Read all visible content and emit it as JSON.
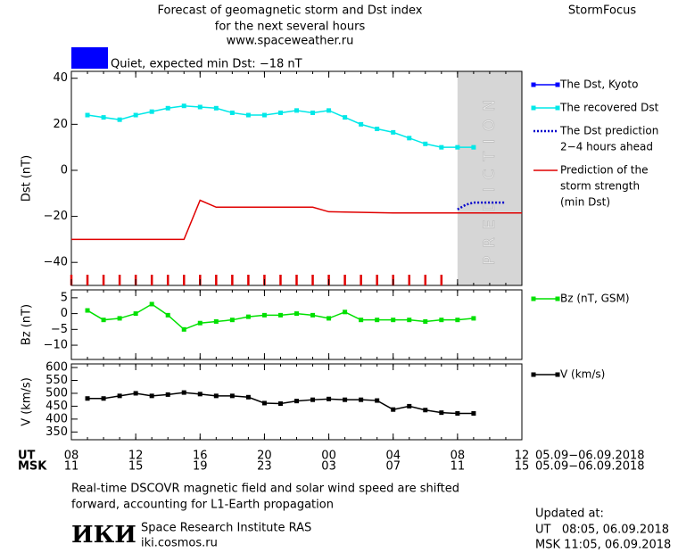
{
  "header": {
    "title_lines": [
      "Forecast of geomagnetic storm and Dst index",
      "for the next several hours",
      "www.spaceweather.ru"
    ],
    "brand": "StormFocus",
    "status": {
      "label": "Quiet, expected min Dst: −18 nT",
      "color": "#0000ff"
    }
  },
  "x_axis": {
    "xlim": [
      0,
      28
    ],
    "ut_label": "UT",
    "msk_label": "MSK",
    "ut_ticks": [
      {
        "value": 0,
        "label": "08"
      },
      {
        "value": 4,
        "label": "12"
      },
      {
        "value": 8,
        "label": "16"
      },
      {
        "value": 12,
        "label": "20"
      },
      {
        "value": 16,
        "label": "00"
      },
      {
        "value": 20,
        "label": "04"
      },
      {
        "value": 24,
        "label": "08"
      },
      {
        "value": 28,
        "label": "12"
      }
    ],
    "msk_ticks": [
      {
        "value": 0,
        "label": "11"
      },
      {
        "value": 4,
        "label": "15"
      },
      {
        "value": 8,
        "label": "19"
      },
      {
        "value": 12,
        "label": "23"
      },
      {
        "value": 16,
        "label": "03"
      },
      {
        "value": 20,
        "label": "07"
      },
      {
        "value": 24,
        "label": "11"
      },
      {
        "value": 28,
        "label": "15"
      }
    ],
    "ut_dates": "05.09−06.09.2018",
    "msk_dates": "05.09−06.09.2018"
  },
  "chart_data": [
    {
      "type": "line",
      "y_label": "Dst (nT)",
      "ylim": [
        -50,
        43
      ],
      "yticks": [
        {
          "value": 40,
          "label": "40"
        },
        {
          "value": 20,
          "label": "20"
        },
        {
          "value": 0,
          "label": "0"
        },
        {
          "value": -20,
          "label": "−20"
        },
        {
          "value": -40,
          "label": "−40"
        }
      ],
      "prediction_start": 24,
      "prediction_label": "PREDICTION",
      "series": [
        {
          "name": [
            "The Dst, Kyoto"
          ],
          "color": "#0000ff",
          "marker": "square",
          "x": [],
          "values": []
        },
        {
          "name": [
            "The recovered Dst"
          ],
          "color": "#00e8e8",
          "marker": "square",
          "x": [
            1,
            2,
            3,
            4,
            5,
            6,
            7,
            8,
            9,
            10,
            11,
            12,
            13,
            14,
            15,
            16,
            17,
            18,
            19,
            20,
            21,
            22,
            23,
            24,
            25
          ],
          "values": [
            24,
            23,
            22,
            24,
            25.5,
            27,
            28,
            27.5,
            27,
            25,
            24,
            24,
            25,
            26,
            25,
            26,
            23,
            20,
            18,
            16.5,
            14,
            11.5,
            10,
            10,
            10
          ]
        },
        {
          "name": [
            "The Dst prediction",
            "2−4 hours ahead"
          ],
          "color": "#0000cc",
          "style": "dotted",
          "x": [
            24,
            24.5,
            25,
            26,
            27
          ],
          "values": [
            -17,
            -15,
            -14,
            -14,
            -14
          ]
        },
        {
          "name": [
            "Prediction of the",
            "storm strength",
            "(min Dst)"
          ],
          "color": "#e00000",
          "x": [
            0,
            7,
            8,
            9,
            15,
            16,
            20,
            28
          ],
          "values": [
            -30,
            -30,
            -13,
            -16,
            -16,
            -18,
            -18.5,
            -18.5
          ]
        }
      ]
    },
    {
      "type": "line",
      "y_label": "Bz (nT)",
      "ylim": [
        -14.5,
        7.5
      ],
      "yticks": [
        {
          "value": 5,
          "label": "5"
        },
        {
          "value": 0,
          "label": "0"
        },
        {
          "value": -5,
          "label": "−5"
        },
        {
          "value": -10,
          "label": "−10"
        }
      ],
      "series": [
        {
          "name": [
            "Bz (nT, GSM)"
          ],
          "color": "#00e000",
          "marker": "square",
          "x": [
            1,
            2,
            3,
            4,
            5,
            6,
            7,
            8,
            9,
            10,
            11,
            12,
            13,
            14,
            15,
            16,
            17,
            18,
            19,
            20,
            21,
            22,
            23,
            24,
            25
          ],
          "values": [
            1,
            -2,
            -1.5,
            0,
            3,
            -0.5,
            -5,
            -3,
            -2.5,
            -2,
            -1,
            -0.5,
            -0.5,
            0,
            -0.5,
            -1.5,
            0.5,
            -2,
            -2,
            -2,
            -2,
            -2.5,
            -2,
            -2,
            -1.5
          ]
        }
      ]
    },
    {
      "type": "line",
      "y_label": "V (km/s)",
      "ylim": [
        320,
        614
      ],
      "yticks": [
        600,
        550,
        500,
        450,
        400,
        350
      ],
      "series": [
        {
          "name": [
            "V (km/s)"
          ],
          "color": "#000000",
          "marker": "square",
          "x": [
            1,
            2,
            3,
            4,
            5,
            6,
            7,
            8,
            9,
            10,
            11,
            12,
            13,
            14,
            15,
            16,
            17,
            18,
            19,
            20,
            21,
            22,
            23,
            24,
            25
          ],
          "values": [
            480,
            480,
            490,
            500,
            490,
            495,
            503,
            497,
            490,
            490,
            485,
            462,
            460,
            470,
            475,
            478,
            475,
            475,
            472,
            437,
            450,
            435,
            425,
            422,
            422
          ]
        }
      ]
    }
  ],
  "footer": {
    "note_lines": [
      "Real-time DSCOVR magnetic field and solar wind speed are shifted",
      "forward, accounting for L1-Earth propagation"
    ],
    "logo": "ИКИ",
    "institute": "Space Research Institute RAS",
    "site": "iki.cosmos.ru",
    "updated_label": "Updated at:",
    "updated_ut": "UT   08:05, 06.09.2018",
    "updated_msk": "MSK 11:05, 06.09.2018"
  }
}
